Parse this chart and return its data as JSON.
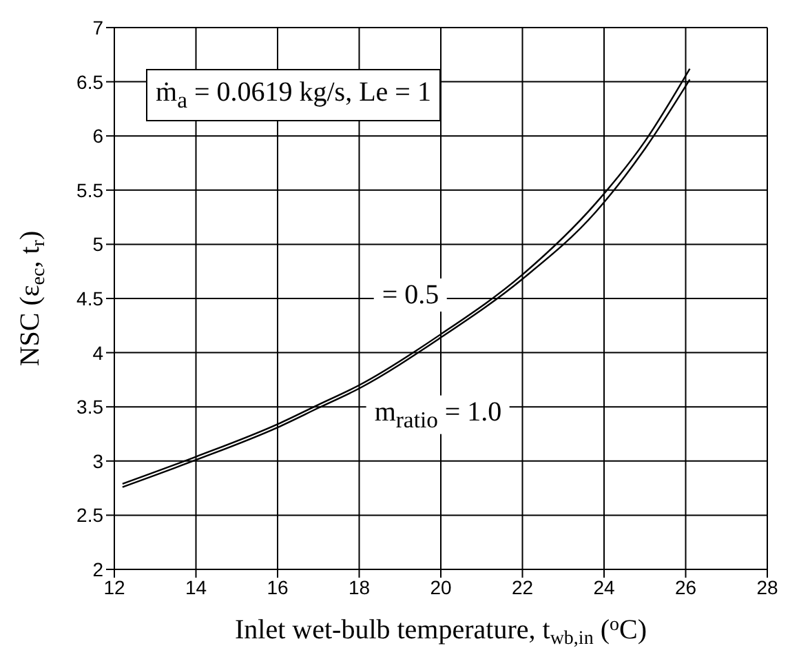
{
  "chart_data": {
    "type": "line",
    "xlabel": "Inlet wet-bulb temperature, t$_{wb,in}$ ($^{o}$C)",
    "ylabel": "NSC (ε$_{ec}$, t$_{r}$)",
    "annotations": [
      "ṁ$_{a}$ = 0.0619 kg/s, Le = 1"
    ],
    "x": [
      12.2,
      14,
      16,
      17,
      18,
      20,
      22,
      23.8,
      25,
      26.1
    ],
    "series": [
      {
        "name": "= 0.5",
        "color": "#000000",
        "values": [
          2.79,
          3.04,
          3.34,
          3.52,
          3.7,
          4.17,
          4.72,
          5.38,
          5.95,
          6.62
        ]
      },
      {
        "name": "m$_{ratio}$ = 1.0",
        "color": "#000000",
        "values": [
          2.76,
          3.01,
          3.31,
          3.49,
          3.67,
          4.14,
          4.68,
          5.3,
          5.88,
          6.52
        ]
      }
    ],
    "xlim": [
      12,
      28
    ],
    "xticks": [
      12,
      14,
      16,
      18,
      20,
      22,
      24,
      26,
      28
    ],
    "ylim": [
      2,
      7
    ],
    "yticks": [
      2,
      2.5,
      3,
      3.5,
      4,
      4.5,
      5,
      5.5,
      6,
      6.5,
      7
    ],
    "grid": true,
    "marker": "none",
    "line_style": "solid"
  }
}
